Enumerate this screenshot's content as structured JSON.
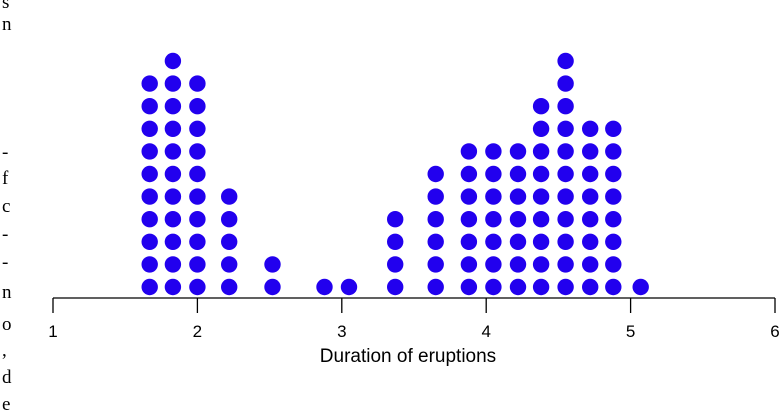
{
  "chart_data": {
    "type": "dot-plot",
    "title": "",
    "xlabel": "Duration of eruptions",
    "ylabel": "",
    "xlim": [
      1,
      6
    ],
    "xticks": [
      "1",
      "2",
      "3",
      "4",
      "5",
      "6"
    ],
    "grid": false,
    "legend": "none",
    "dot_color": "#2200ee",
    "columns": [
      {
        "x": 1.67,
        "count": 10
      },
      {
        "x": 1.83,
        "count": 11
      },
      {
        "x": 2.0,
        "count": 10
      },
      {
        "x": 2.22,
        "count": 5
      },
      {
        "x": 2.52,
        "count": 2
      },
      {
        "x": 2.88,
        "count": 1
      },
      {
        "x": 3.05,
        "count": 1
      },
      {
        "x": 3.37,
        "count": 4
      },
      {
        "x": 3.65,
        "count": 6
      },
      {
        "x": 3.88,
        "count": 7
      },
      {
        "x": 4.05,
        "count": 7
      },
      {
        "x": 4.22,
        "count": 7
      },
      {
        "x": 4.38,
        "count": 9
      },
      {
        "x": 4.55,
        "count": 11
      },
      {
        "x": 4.72,
        "count": 8
      },
      {
        "x": 4.88,
        "count": 8
      },
      {
        "x": 5.07,
        "count": 1
      }
    ]
  },
  "margin_text": [
    "s",
    "n",
    "-",
    "f",
    "c",
    "-",
    "-",
    "n",
    "o",
    ",",
    "d",
    "e"
  ]
}
